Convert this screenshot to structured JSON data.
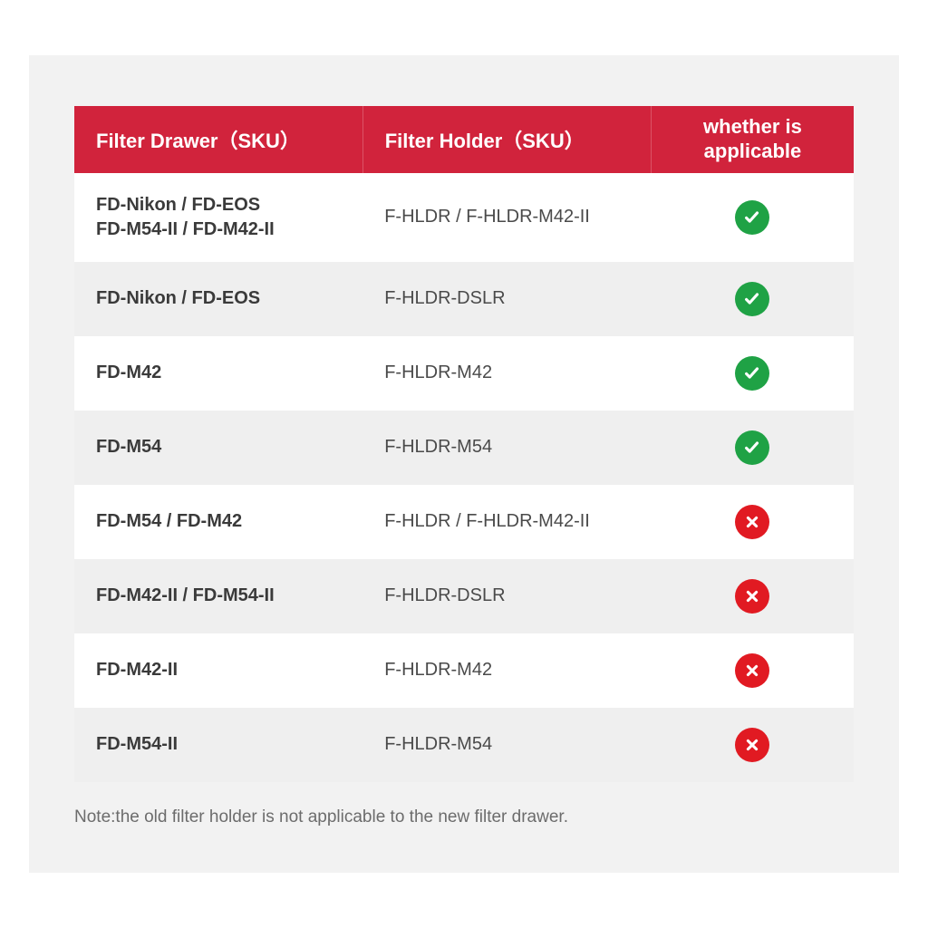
{
  "colors": {
    "page_bg": "#ffffff",
    "panel_bg": "#f2f2f2",
    "header_bg": "#d1233c",
    "header_text": "#ffffff",
    "row_odd_bg": "#ffffff",
    "row_even_bg": "#efefef",
    "drawer_text": "#3a3a3a",
    "holder_text": "#4a4a4a",
    "status_yes": "#1fa245",
    "status_no": "#e11a22",
    "note_text": "#6c6c6c"
  },
  "table": {
    "columns": [
      "Filter Drawer（SKU）",
      "Filter Holder（SKU）",
      "whether is applicable"
    ],
    "rows": [
      {
        "drawer": "FD-Nikon / FD-EOS\nFD-M54-II / FD-M42-II",
        "holder": "F-HLDR / F-HLDR-M42-II",
        "applicable": true
      },
      {
        "drawer": "FD-Nikon / FD-EOS",
        "holder": "F-HLDR-DSLR",
        "applicable": true
      },
      {
        "drawer": "FD-M42",
        "holder": "F-HLDR-M42",
        "applicable": true
      },
      {
        "drawer": "FD-M54",
        "holder": "F-HLDR-M54",
        "applicable": true
      },
      {
        "drawer": "FD-M54 / FD-M42",
        "holder": "F-HLDR / F-HLDR-M42-II",
        "applicable": false
      },
      {
        "drawer": "FD-M42-II / FD-M54-II",
        "holder": "F-HLDR-DSLR",
        "applicable": false
      },
      {
        "drawer": "FD-M42-II",
        "holder": "F-HLDR-M42",
        "applicable": false
      },
      {
        "drawer": "FD-M54-II",
        "holder": "F-HLDR-M54",
        "applicable": false
      }
    ]
  },
  "note": "Note:the old filter holder is not applicable to the new filter drawer."
}
